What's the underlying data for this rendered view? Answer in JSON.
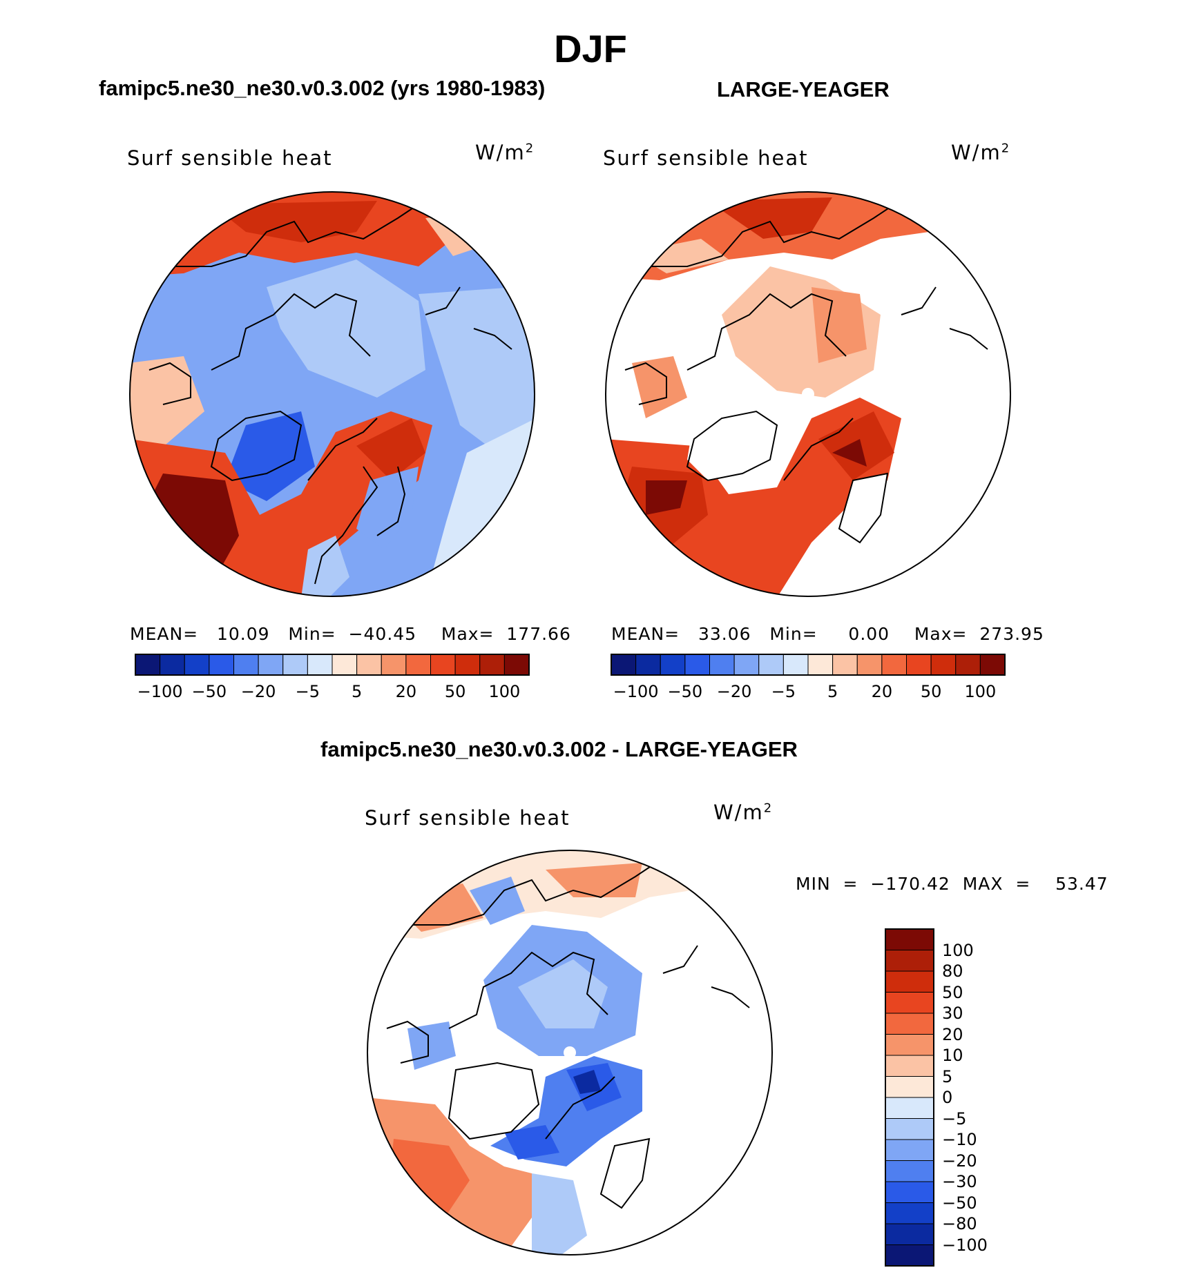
{
  "title": "DJF",
  "panels": {
    "left": {
      "title": "famipc5.ne30_ne30.v0.3.002 (yrs 1980-1983)",
      "variable": "Surf  sensible  heat",
      "units": "W/m",
      "units_sup": "2",
      "stats": "MEAN=   10.09   Min=  −40.45    Max=  177.66"
    },
    "right": {
      "title": "LARGE-YEAGER",
      "variable": "Surf  sensible  heat",
      "units": "W/m",
      "units_sup": "2",
      "stats": "MEAN=   33.06   Min=     0.00    Max=  273.95"
    },
    "bottom": {
      "title": "famipc5.ne30_ne30.v0.3.002 - LARGE-YEAGER",
      "variable": "Surf  sensible  heat",
      "units": "W/m",
      "units_sup": "2",
      "stats": "MIN  =  −170.42  MAX  =    53.47"
    }
  },
  "colorbar_h": {
    "colors": [
      "#0b1775",
      "#0b2aa0",
      "#1340c8",
      "#2a5ae8",
      "#4f7ff0",
      "#7fa6f5",
      "#aecaf8",
      "#d8e8fb",
      "#fde8d8",
      "#fbc3a5",
      "#f6946a",
      "#f2683e",
      "#e84520",
      "#cf2d0c",
      "#ad1f08",
      "#7c0a05"
    ],
    "labels": [
      "−100",
      "−50",
      "−20",
      "−5",
      "5",
      "20",
      "50",
      "100"
    ]
  },
  "colorbar_v": {
    "colors": [
      "#7c0a05",
      "#ad1f08",
      "#cf2d0c",
      "#e84520",
      "#f2683e",
      "#f6946a",
      "#fbc3a5",
      "#fde8d8",
      "#d8e8fb",
      "#aecaf8",
      "#7fa6f5",
      "#4f7ff0",
      "#2a5ae8",
      "#1340c8",
      "#0b2aa0",
      "#0b1775"
    ],
    "labels": [
      "100",
      "80",
      "50",
      "30",
      "20",
      "10",
      "5",
      "0",
      "−5",
      "−10",
      "−20",
      "−30",
      "−50",
      "−80",
      "−100"
    ]
  },
  "palette": {
    "land": "#ffffff",
    "cool_light": "#aecaf8",
    "cool_mid": "#7fa6f5",
    "cool_dark": "#2a5ae8",
    "warm_light": "#fbc3a5",
    "warm_mid": "#f2683e",
    "warm_dark": "#cf2d0c",
    "warm_darkest": "#7c0a05"
  }
}
